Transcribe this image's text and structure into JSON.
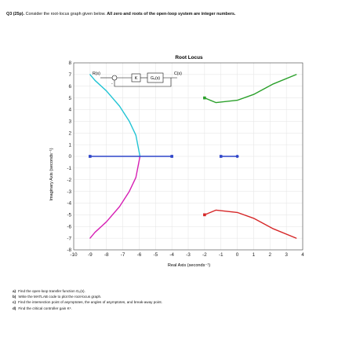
{
  "problem": {
    "label": "Q3 (25p).",
    "intro": "Consider the root-locus graph given below.",
    "emphasis": "All zero and roots of the open-loop system are integer numbers."
  },
  "chart_data": {
    "type": "line",
    "title": "Root Locus",
    "xlabel": "Real Axis (seconds⁻¹)",
    "ylabel": "Imaginary Axis (seconds⁻¹)",
    "xlim": [
      -10,
      4
    ],
    "ylim": [
      -8,
      8
    ],
    "xticks": [
      -10,
      -9,
      -8,
      -7,
      -6,
      -5,
      -4,
      -3,
      -2,
      -1,
      0,
      1,
      2,
      3,
      4
    ],
    "yticks": [
      -8,
      -7,
      -6,
      -5,
      -4,
      -3,
      -2,
      -1,
      0,
      1,
      2,
      3,
      4,
      5,
      6,
      7,
      8
    ],
    "grid": true,
    "series": [
      {
        "color": "#22c4d4",
        "x": [
          -5.95,
          -6.2,
          -6.6,
          -7.2,
          -8.0,
          -8.7,
          -9.0
        ],
        "y": [
          0,
          1.8,
          3.0,
          4.3,
          5.6,
          6.5,
          7.0
        ]
      },
      {
        "color": "#d61fb4",
        "x": [
          -5.95,
          -6.2,
          -6.6,
          -7.2,
          -8.0,
          -8.7,
          -9.0
        ],
        "y": [
          0,
          -1.8,
          -3.0,
          -4.3,
          -5.6,
          -6.5,
          -7.0
        ]
      },
      {
        "color": "#2f45c9",
        "x": [
          -9.0,
          -4.0
        ],
        "y": [
          0,
          0
        ]
      },
      {
        "color": "#2f45c9",
        "x": [
          -1.0,
          0.0
        ],
        "y": [
          0,
          0
        ]
      },
      {
        "color": "#2aa02a",
        "x": [
          -2.0,
          -1.3,
          0.0,
          1.0,
          2.2,
          3.6
        ],
        "y": [
          5.0,
          4.6,
          4.8,
          5.3,
          6.2,
          7.0
        ]
      },
      {
        "color": "#d62728",
        "x": [
          -2.0,
          -1.3,
          0.0,
          1.0,
          2.2,
          3.6
        ],
        "y": [
          -5.0,
          -4.6,
          -4.8,
          -5.3,
          -6.2,
          -7.0
        ]
      }
    ],
    "poles_open": [
      [
        -9,
        0
      ],
      [
        -4,
        0
      ],
      [
        -1,
        0
      ],
      [
        -2,
        5
      ],
      [
        -2,
        -5
      ]
    ],
    "zeros": [
      [
        0,
        0
      ]
    ]
  },
  "block_diagram": {
    "input": "R(s)",
    "gain": "K",
    "plant": "Gₒ(s)",
    "output": "C(s)",
    "summing_sign": "-"
  },
  "questions": [
    {
      "label": "a)",
      "text": "Find the open-loop transfer function Gₒ(s)."
    },
    {
      "label": "b)",
      "text": "Write the MATLAB code to plot the root-locus graph."
    },
    {
      "label": "c)",
      "text": "Find the intersection point of asymptotes, the angles of asymptotes, and break-away point."
    },
    {
      "label": "d)",
      "text": "Find the critical controller gain Kᶜ."
    }
  ],
  "colors": {
    "grid": "#e3e3e3",
    "axis": "#444444"
  }
}
